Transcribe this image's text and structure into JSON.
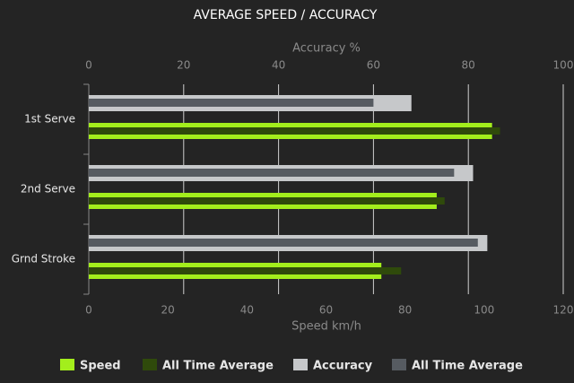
{
  "chart_data": {
    "type": "bar",
    "orientation": "horizontal",
    "title": "AVERAGE SPEED / ACCURACY",
    "x_label": "Speed km/h",
    "x2_label": "Accuracy %",
    "categories": [
      "1st Serve",
      "2nd Serve",
      "Grnd Stroke"
    ],
    "xlim": [
      0,
      120
    ],
    "xticks": [
      0,
      20,
      40,
      60,
      80,
      100,
      120
    ],
    "x2lim": [
      0,
      100
    ],
    "x2ticks": [
      0,
      20,
      40,
      60,
      80,
      100
    ],
    "grid": true,
    "legend": "bottom",
    "series": [
      {
        "name": "Speed",
        "color": "#a3ee1c",
        "values": [
          102,
          88,
          74
        ]
      },
      {
        "name": "All Time Average",
        "color": "#2f4a0b",
        "values": [
          104,
          90,
          79
        ]
      },
      {
        "name": "Accuracy",
        "color": "#c6c8ca",
        "axis": "x2",
        "values": [
          68,
          81,
          84
        ]
      },
      {
        "name": "All Time Average",
        "color": "#565b61",
        "axis": "x2",
        "values": [
          60,
          77,
          82
        ]
      }
    ]
  }
}
